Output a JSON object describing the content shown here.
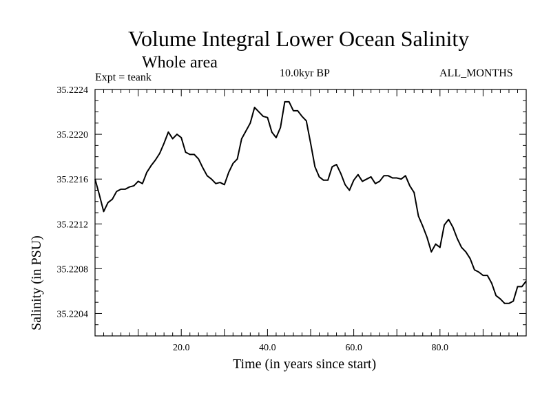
{
  "chart_data": {
    "type": "line",
    "title": "Volume Integral Lower Ocean Salinity",
    "subtitle": "Whole area",
    "experiment": "Expt = teank",
    "period": "10.0kyr BP",
    "months": "ALL_MONTHS",
    "xlabel": "Time (in years since start)",
    "ylabel": "Salinity (in PSU)",
    "xlim": [
      0,
      100
    ],
    "ylim": [
      35.2202,
      35.2224
    ],
    "xticks": [
      20,
      40,
      60,
      80
    ],
    "xtick_labels": [
      "20.0",
      "40.0",
      "60.0",
      "80.0"
    ],
    "yticks": [
      35.2204,
      35.2208,
      35.2212,
      35.2216,
      35.222,
      35.2224
    ],
    "ytick_labels": [
      "35.2204",
      "35.2208",
      "35.2212",
      "35.2216",
      "35.2220",
      "35.2224"
    ],
    "grid": false,
    "series": [
      {
        "name": "Salinity",
        "x": [
          0,
          1,
          2,
          3,
          4,
          5,
          6,
          7,
          8,
          9,
          10,
          11,
          12,
          13,
          14,
          15,
          16,
          17,
          18,
          19,
          20,
          21,
          22,
          23,
          24,
          25,
          26,
          27,
          28,
          29,
          30,
          31,
          32,
          33,
          34,
          35,
          36,
          37,
          38,
          39,
          40,
          41,
          42,
          43,
          44,
          45,
          46,
          47,
          48,
          49,
          50,
          51,
          52,
          53,
          54,
          55,
          56,
          57,
          58,
          59,
          60,
          61,
          62,
          63,
          64,
          65,
          66,
          67,
          68,
          69,
          70,
          71,
          72,
          73,
          74,
          75,
          76,
          77,
          78,
          79,
          80,
          81,
          82,
          83,
          84,
          85,
          86,
          87,
          88,
          89,
          90,
          91,
          92,
          93,
          94,
          95,
          96,
          97,
          98,
          99,
          100
        ],
        "values": [
          35.2216,
          35.22146,
          35.22131,
          35.22139,
          35.22142,
          35.22149,
          35.22151,
          35.22151,
          35.22153,
          35.22154,
          35.22158,
          35.22156,
          35.22166,
          35.22172,
          35.22177,
          35.22183,
          35.22192,
          35.22202,
          35.22196,
          35.222,
          35.22197,
          35.22184,
          35.22182,
          35.22182,
          35.22178,
          35.2217,
          35.22163,
          35.2216,
          35.22156,
          35.22157,
          35.22155,
          35.22166,
          35.22174,
          35.22178,
          35.22196,
          35.22203,
          35.2221,
          35.22224,
          35.2222,
          35.22216,
          35.22215,
          35.22202,
          35.22197,
          35.22206,
          35.22229,
          35.22229,
          35.22221,
          35.22221,
          35.22216,
          35.22212,
          35.22192,
          35.22171,
          35.22162,
          35.22159,
          35.22159,
          35.22171,
          35.22173,
          35.22165,
          35.22155,
          35.2215,
          35.22159,
          35.22164,
          35.22158,
          35.2216,
          35.22162,
          35.22156,
          35.22158,
          35.22163,
          35.22163,
          35.22161,
          35.22161,
          35.2216,
          35.22163,
          35.22154,
          35.22148,
          35.22127,
          35.22118,
          35.22108,
          35.22095,
          35.22102,
          35.22099,
          35.22119,
          35.22124,
          35.22117,
          35.22107,
          35.22099,
          35.22095,
          35.22089,
          35.22079,
          35.22077,
          35.22074,
          35.22074,
          35.22067,
          35.22056,
          35.22053,
          35.22049,
          35.22049,
          35.22051,
          35.22064,
          35.22064,
          35.22069
        ]
      }
    ]
  }
}
